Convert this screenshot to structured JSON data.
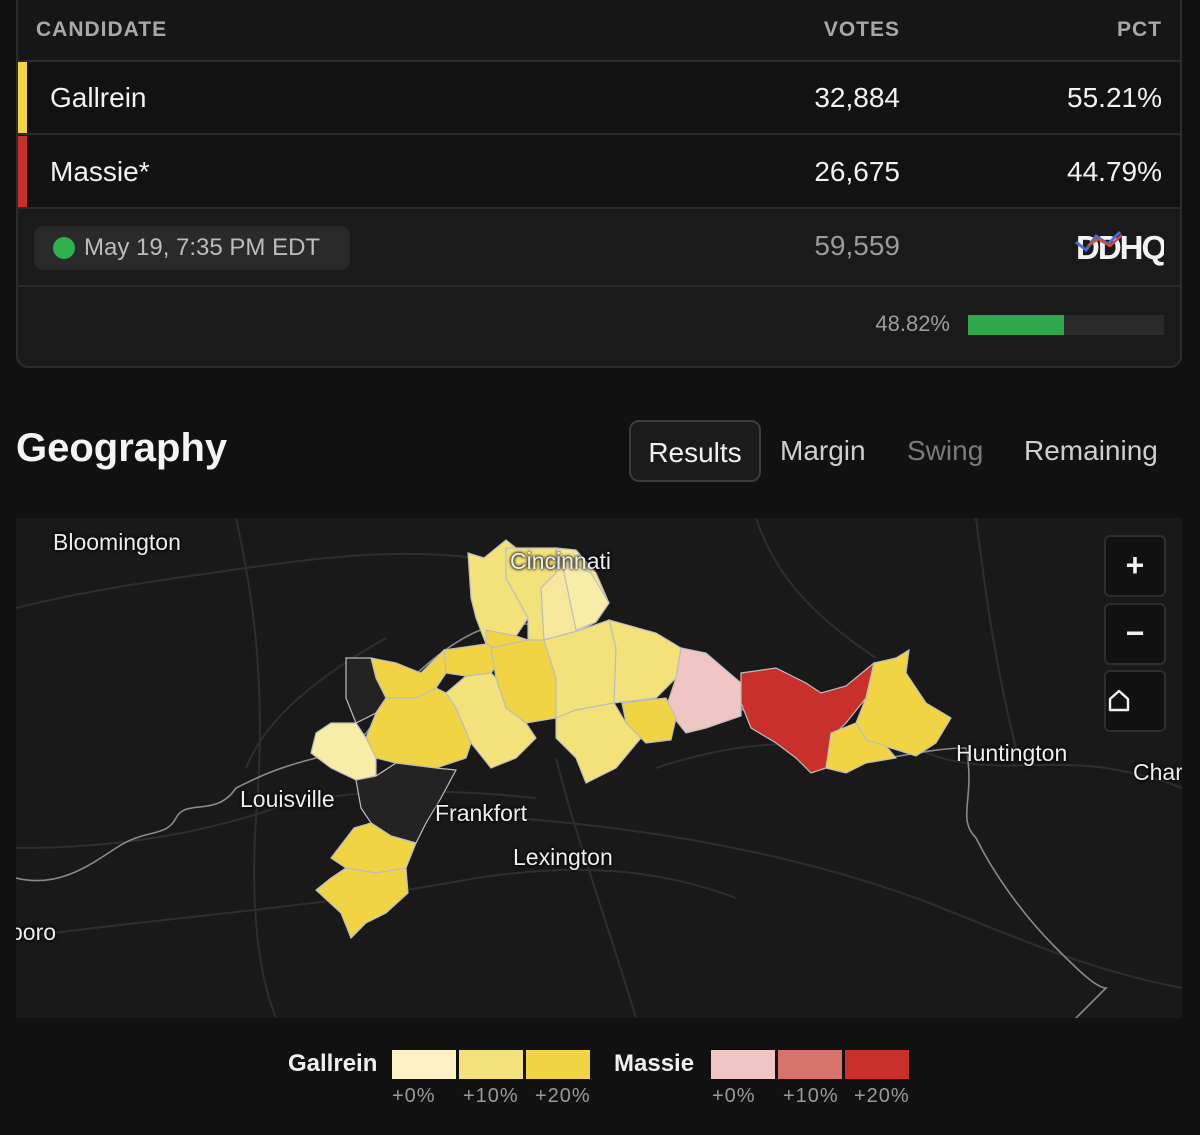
{
  "table": {
    "headers": {
      "candidate": "CANDIDATE",
      "votes": "VOTES",
      "pct": "PCT"
    },
    "rows": [
      {
        "name": "Gallrein",
        "votes": "32,884",
        "pct": "55.21%",
        "color": "#f3d541"
      },
      {
        "name": "Massie*",
        "votes": "26,675",
        "pct": "44.79%",
        "color": "#c9302c"
      }
    ],
    "timestamp": "May 19, 7:35 PM EDT",
    "total_votes": "59,559",
    "source_logo": "DDHQ",
    "reporting_pct_label": "48.82%",
    "reporting_fraction": 0.4882
  },
  "geography": {
    "title": "Geography",
    "tabs": [
      "Results",
      "Margin",
      "Swing",
      "Remaining"
    ],
    "active_tab": "Results"
  },
  "map": {
    "city_labels": [
      "Bloomington",
      "Cincinnati",
      "Louisville",
      "Frankfort",
      "Lexington",
      "Huntington",
      "Char",
      "boro"
    ],
    "controls": {
      "zoom_in": "+",
      "zoom_out": "−",
      "home_icon": "home-icon"
    }
  },
  "legend": {
    "candidates": [
      {
        "name": "Gallrein",
        "swatches": [
          "#fbf1c4",
          "#f3e27a",
          "#f0d444"
        ],
        "labels": [
          "+0%",
          "+10%",
          "+20%"
        ]
      },
      {
        "name": "Massie",
        "swatches": [
          "#f0c6c4",
          "#d6726b",
          "#c9302c"
        ],
        "labels": [
          "+0%",
          "+10%",
          "+20%"
        ]
      }
    ]
  }
}
